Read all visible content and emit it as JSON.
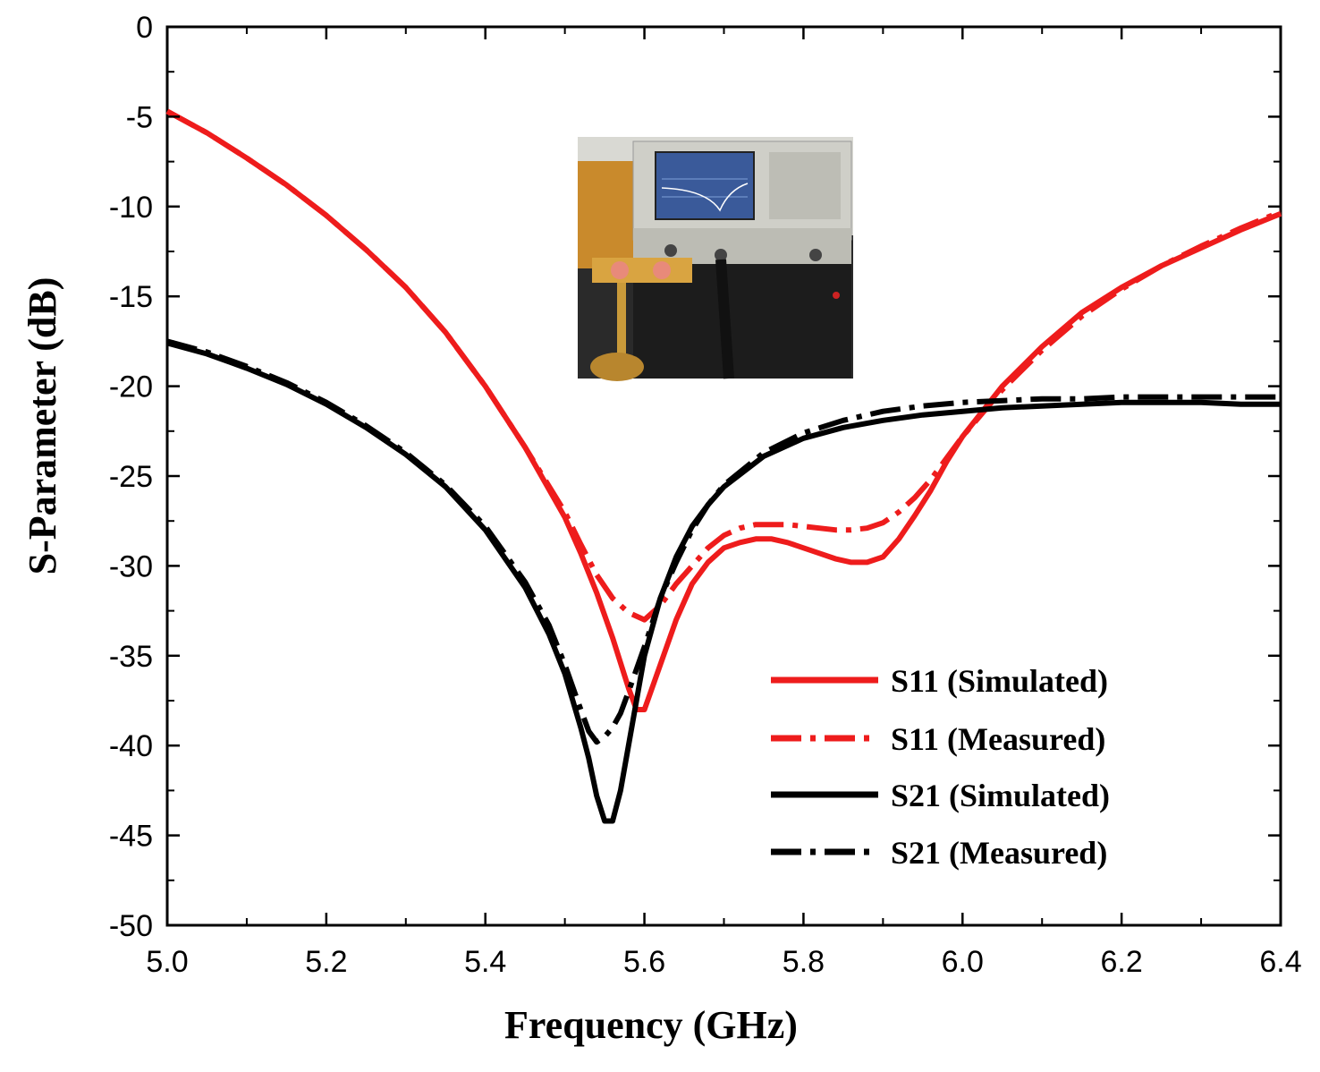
{
  "chart_data": {
    "type": "line",
    "xlabel": "Frequency (GHz)",
    "ylabel": "S-Parameter (dB)",
    "xlim": [
      5.0,
      6.4
    ],
    "ylim": [
      -50,
      0
    ],
    "x_ticks": [
      "5.0",
      "5.2",
      "5.4",
      "5.6",
      "5.8",
      "6.0",
      "6.2",
      "6.4"
    ],
    "y_ticks": [
      "0",
      "-5",
      "-10",
      "-15",
      "-20",
      "-25",
      "-30",
      "-35",
      "-40",
      "-45",
      "-50"
    ],
    "grid": false,
    "legend_position": "bottom-right",
    "inset": "photo of vector network analyzer measurement setup with antenna under test",
    "series": [
      {
        "name": "S11 (Simulated)",
        "color": "#ee1c1c",
        "style": "solid",
        "x": [
          5.0,
          5.05,
          5.1,
          5.15,
          5.2,
          5.25,
          5.3,
          5.35,
          5.4,
          5.45,
          5.5,
          5.52,
          5.54,
          5.56,
          5.58,
          5.59,
          5.6,
          5.62,
          5.64,
          5.66,
          5.68,
          5.7,
          5.72,
          5.74,
          5.76,
          5.78,
          5.8,
          5.82,
          5.84,
          5.86,
          5.88,
          5.9,
          5.92,
          5.94,
          5.96,
          5.98,
          6.0,
          6.05,
          6.1,
          6.15,
          6.2,
          6.25,
          6.3,
          6.35,
          6.4
        ],
        "values": [
          -4.7,
          -5.9,
          -7.3,
          -8.8,
          -10.5,
          -12.4,
          -14.5,
          -17.0,
          -20.0,
          -23.4,
          -27.3,
          -29.3,
          -31.5,
          -34.0,
          -36.8,
          -38.0,
          -38.0,
          -35.5,
          -33.0,
          -31.0,
          -29.8,
          -29.0,
          -28.7,
          -28.5,
          -28.5,
          -28.7,
          -29.0,
          -29.3,
          -29.6,
          -29.8,
          -29.8,
          -29.5,
          -28.5,
          -27.2,
          -25.8,
          -24.2,
          -22.8,
          -20.0,
          -17.8,
          -15.9,
          -14.5,
          -13.3,
          -12.3,
          -11.3,
          -10.4
        ]
      },
      {
        "name": "S11 (Measured)",
        "color": "#ee1c1c",
        "style": "dashdot",
        "x": [
          5.0,
          5.05,
          5.1,
          5.15,
          5.2,
          5.25,
          5.3,
          5.35,
          5.4,
          5.45,
          5.5,
          5.52,
          5.54,
          5.56,
          5.58,
          5.6,
          5.62,
          5.64,
          5.66,
          5.68,
          5.7,
          5.72,
          5.74,
          5.76,
          5.78,
          5.8,
          5.82,
          5.84,
          5.86,
          5.88,
          5.9,
          5.92,
          5.94,
          5.96,
          5.98,
          6.0,
          6.05,
          6.1,
          6.15,
          6.2,
          6.25,
          6.3,
          6.35,
          6.4
        ],
        "values": [
          -4.7,
          -5.9,
          -7.3,
          -8.8,
          -10.5,
          -12.4,
          -14.5,
          -17.0,
          -20.0,
          -23.4,
          -27.0,
          -28.8,
          -30.5,
          -31.8,
          -32.6,
          -33.0,
          -32.2,
          -31.0,
          -30.0,
          -29.0,
          -28.3,
          -27.9,
          -27.7,
          -27.7,
          -27.7,
          -27.8,
          -27.9,
          -28.0,
          -28.0,
          -27.9,
          -27.6,
          -27.0,
          -26.2,
          -25.2,
          -24.0,
          -22.8,
          -20.2,
          -18.0,
          -16.1,
          -14.6,
          -13.3,
          -12.2,
          -11.2,
          -10.3
        ]
      },
      {
        "name": "S21 (Simulated)",
        "color": "#000000",
        "style": "solid",
        "x": [
          5.0,
          5.05,
          5.1,
          5.15,
          5.2,
          5.25,
          5.3,
          5.35,
          5.4,
          5.45,
          5.48,
          5.5,
          5.52,
          5.53,
          5.54,
          5.55,
          5.56,
          5.57,
          5.58,
          5.59,
          5.6,
          5.62,
          5.64,
          5.66,
          5.68,
          5.7,
          5.75,
          5.8,
          5.85,
          5.9,
          5.95,
          6.0,
          6.05,
          6.1,
          6.15,
          6.2,
          6.25,
          6.3,
          6.35,
          6.4
        ],
        "values": [
          -17.6,
          -18.2,
          -19.0,
          -19.9,
          -21.0,
          -22.3,
          -23.8,
          -25.6,
          -28.0,
          -31.2,
          -33.8,
          -36.0,
          -39.0,
          -40.7,
          -42.8,
          -44.2,
          -44.2,
          -42.5,
          -40.0,
          -37.5,
          -35.0,
          -31.8,
          -29.5,
          -27.8,
          -26.6,
          -25.6,
          -23.9,
          -22.9,
          -22.3,
          -21.9,
          -21.6,
          -21.4,
          -21.2,
          -21.1,
          -21.0,
          -20.9,
          -20.9,
          -20.9,
          -21.0,
          -21.0
        ]
      },
      {
        "name": "S21 (Measured)",
        "color": "#000000",
        "style": "dashdot",
        "x": [
          5.0,
          5.05,
          5.1,
          5.15,
          5.2,
          5.25,
          5.3,
          5.35,
          5.4,
          5.45,
          5.48,
          5.5,
          5.52,
          5.53,
          5.54,
          5.55,
          5.56,
          5.57,
          5.58,
          5.6,
          5.62,
          5.64,
          5.66,
          5.68,
          5.7,
          5.75,
          5.8,
          5.85,
          5.9,
          5.95,
          6.0,
          6.05,
          6.1,
          6.15,
          6.2,
          6.25,
          6.3,
          6.35,
          6.4
        ],
        "values": [
          -17.5,
          -18.1,
          -18.9,
          -19.8,
          -20.9,
          -22.2,
          -23.7,
          -25.5,
          -27.8,
          -30.9,
          -33.3,
          -35.5,
          -38.0,
          -39.2,
          -39.8,
          -39.5,
          -39.0,
          -38.2,
          -37.0,
          -34.5,
          -31.8,
          -29.8,
          -28.0,
          -26.6,
          -25.5,
          -23.7,
          -22.6,
          -21.9,
          -21.4,
          -21.1,
          -20.9,
          -20.8,
          -20.7,
          -20.7,
          -20.6,
          -20.6,
          -20.6,
          -20.6,
          -20.6
        ]
      }
    ]
  }
}
